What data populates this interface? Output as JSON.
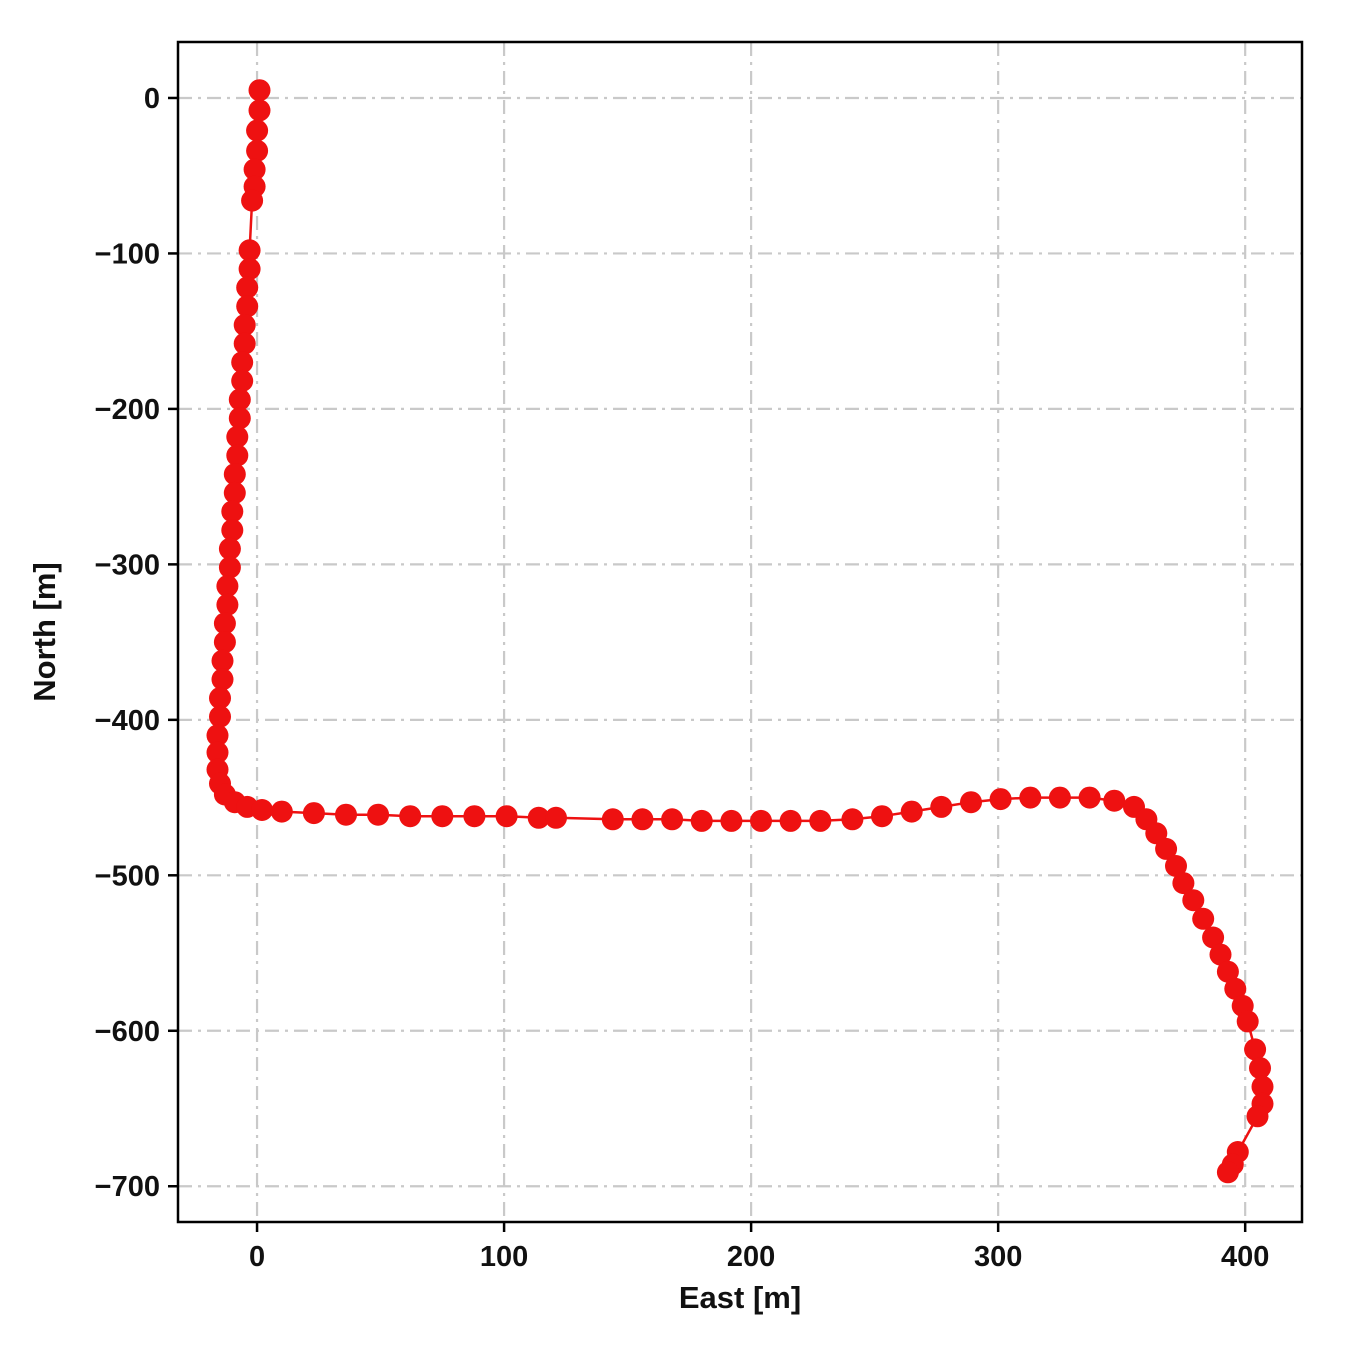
{
  "figure": {
    "background": "#ffffff"
  },
  "chart_data": {
    "type": "scatter",
    "title": "",
    "xlabel": "East [m]",
    "ylabel": "North [m]",
    "xlim": [
      -32,
      423
    ],
    "ylim": [
      -723,
      36
    ],
    "xticks": [
      0,
      100,
      200,
      300,
      400
    ],
    "yticks": [
      0,
      -100,
      -200,
      -300,
      -400,
      -500,
      -600,
      -700
    ],
    "xtick_labels": [
      "0",
      "100",
      "200",
      "300",
      "400"
    ],
    "ytick_labels": [
      "0",
      "−100",
      "−200",
      "−300",
      "−400",
      "−500",
      "−600",
      "−700"
    ],
    "grid": true,
    "grid_style": "dash-dot",
    "grid_color": "#c9c9c9",
    "legend": "none",
    "series": [
      {
        "name": "trajectory",
        "color": "#ee1111",
        "marker": "circle",
        "marker_size": 11,
        "line_width": 2.5,
        "points": [
          [
            1,
            5
          ],
          [
            1,
            -8
          ],
          [
            0,
            -21
          ],
          [
            0,
            -34
          ],
          [
            -1,
            -46
          ],
          [
            -1,
            -57
          ],
          [
            -2,
            -66
          ],
          [
            -3,
            -98
          ],
          [
            -3,
            -110
          ],
          [
            -4,
            -122
          ],
          [
            -4,
            -134
          ],
          [
            -5,
            -146
          ],
          [
            -5,
            -158
          ],
          [
            -6,
            -170
          ],
          [
            -6,
            -182
          ],
          [
            -7,
            -194
          ],
          [
            -7,
            -206
          ],
          [
            -8,
            -218
          ],
          [
            -8,
            -230
          ],
          [
            -9,
            -242
          ],
          [
            -9,
            -254
          ],
          [
            -10,
            -266
          ],
          [
            -10,
            -278
          ],
          [
            -11,
            -290
          ],
          [
            -11,
            -302
          ],
          [
            -12,
            -314
          ],
          [
            -12,
            -326
          ],
          [
            -13,
            -338
          ],
          [
            -13,
            -350
          ],
          [
            -14,
            -362
          ],
          [
            -14,
            -374
          ],
          [
            -15,
            -386
          ],
          [
            -15,
            -398
          ],
          [
            -16,
            -410
          ],
          [
            -16,
            -421
          ],
          [
            -16,
            -432
          ],
          [
            -15,
            -441
          ],
          [
            -13,
            -448
          ],
          [
            -9,
            -453
          ],
          [
            -4,
            -456
          ],
          [
            2,
            -458
          ],
          [
            10,
            -459
          ],
          [
            23,
            -460
          ],
          [
            36,
            -461
          ],
          [
            49,
            -461
          ],
          [
            62,
            -462
          ],
          [
            75,
            -462
          ],
          [
            88,
            -462
          ],
          [
            101,
            -462
          ],
          [
            114,
            -463
          ],
          [
            121,
            -463
          ],
          [
            144,
            -464
          ],
          [
            156,
            -464
          ],
          [
            168,
            -464
          ],
          [
            180,
            -465
          ],
          [
            192,
            -465
          ],
          [
            204,
            -465
          ],
          [
            216,
            -465
          ],
          [
            228,
            -465
          ],
          [
            241,
            -464
          ],
          [
            253,
            -462
          ],
          [
            265,
            -459
          ],
          [
            277,
            -456
          ],
          [
            289,
            -453
          ],
          [
            301,
            -451
          ],
          [
            313,
            -450
          ],
          [
            325,
            -450
          ],
          [
            337,
            -450
          ],
          [
            347,
            -452
          ],
          [
            355,
            -456
          ],
          [
            360,
            -464
          ],
          [
            364,
            -473
          ],
          [
            368,
            -483
          ],
          [
            372,
            -494
          ],
          [
            375,
            -505
          ],
          [
            379,
            -516
          ],
          [
            383,
            -528
          ],
          [
            387,
            -540
          ],
          [
            390,
            -551
          ],
          [
            393,
            -562
          ],
          [
            396,
            -573
          ],
          [
            399,
            -584
          ],
          [
            401,
            -594
          ],
          [
            404,
            -612
          ],
          [
            406,
            -624
          ],
          [
            407,
            -636
          ],
          [
            407,
            -647
          ],
          [
            405,
            -655
          ],
          [
            397,
            -678
          ],
          [
            395,
            -686
          ],
          [
            393,
            -691
          ]
        ]
      }
    ]
  }
}
